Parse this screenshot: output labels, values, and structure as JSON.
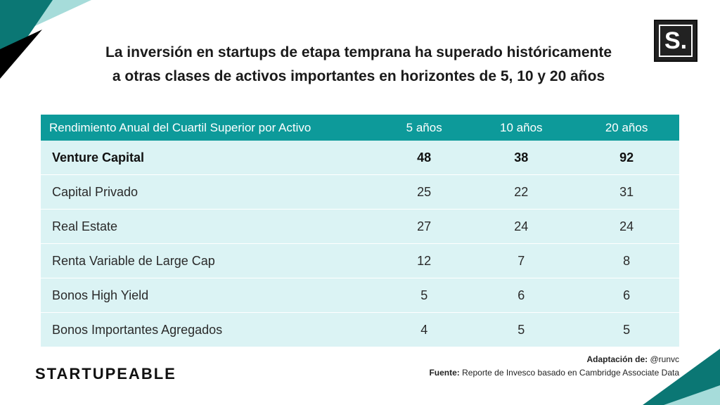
{
  "title_line1": "La inversión en startups de etapa temprana ha superado históricamente",
  "title_line2": "a otras clases de activos importantes en horizontes de 5, 10 y 20 años",
  "logo_letter": "S.",
  "table": {
    "headers": [
      "Rendimiento Anual del Cuartil Superior por Activo",
      "5 años",
      "10 años",
      "20 años"
    ],
    "rows": [
      {
        "asset": "Venture Capital",
        "y5": "48",
        "y10": "38",
        "y20": "92"
      },
      {
        "asset": "Capital Privado",
        "y5": "25",
        "y10": "22",
        "y20": "31"
      },
      {
        "asset": "Real Estate",
        "y5": "27",
        "y10": "24",
        "y20": "24"
      },
      {
        "asset": "Renta Variable de Large Cap",
        "y5": "12",
        "y10": "7",
        "y20": "8"
      },
      {
        "asset": "Bonos High Yield",
        "y5": "5",
        "y10": "6",
        "y20": "6"
      },
      {
        "asset": "Bonos Importantes Agregados",
        "y5": "4",
        "y10": "5",
        "y20": "5"
      }
    ]
  },
  "brand": "STARTUPEABLE",
  "credits": {
    "adaptation_label": "Adaptación de:",
    "adaptation_value": "@runvc",
    "source_label": "Fuente:",
    "source_value": "Reporte de Invesco basado en Cambridge Associate Data"
  },
  "colors": {
    "header_teal": "#0d9a9a",
    "row_light": "#dbf3f4",
    "corner_teal": "#0b7774",
    "corner_light": "#a6dcda"
  }
}
